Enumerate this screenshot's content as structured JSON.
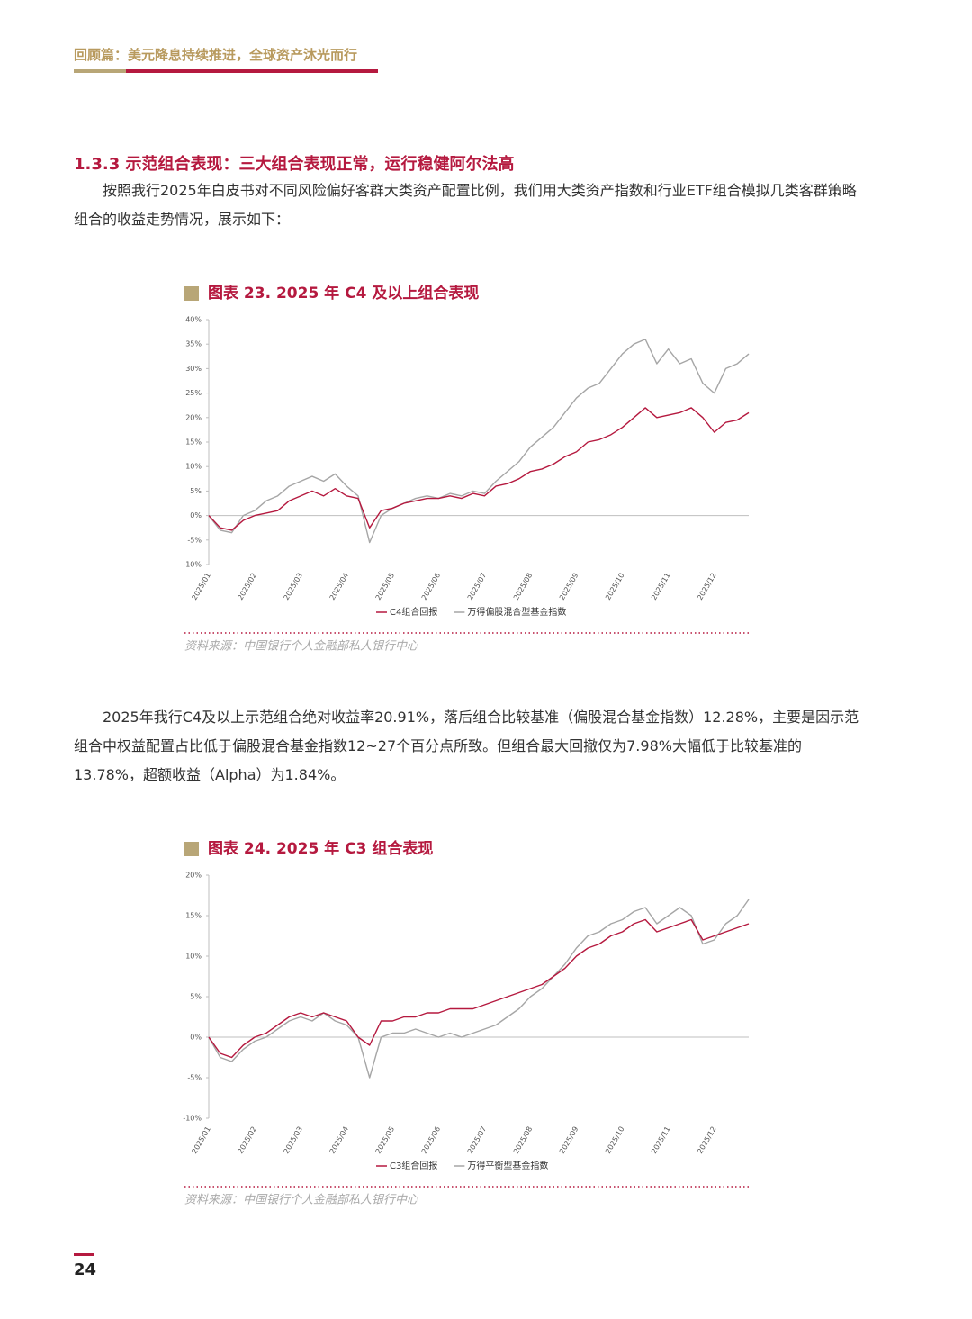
{
  "header": {
    "title": "回顾篇：美元降息持续推进，全球资产沐光而行"
  },
  "section": {
    "heading": "1.3.3 示范组合表现：三大组合表现正常，运行稳健阿尔法高"
  },
  "paragraphs": [
    "按照我行2025年白皮书对不同风险偏好客群大类资产配置比例，我们用大类资产指数和行业ETF组合模拟几类客群策略组合的收益走势情况，展示如下：",
    "2025年我行C4及以上示范组合绝对收益率20.91%，落后组合比较基准（偏股混合基金指数）12.28%，主要是因示范组合中权益配置占比低于偏股混合基金指数12~27个百分点所致。但组合最大回撤仅为7.98%大幅低于比较基准的13.78%，超额收益（Alpha）为1.84%。"
  ],
  "page_number": "24",
  "chart_data": [
    {
      "type": "line",
      "title": "图表 23. 2025 年 C4 及以上组合表现",
      "source": "资料来源：中国银行个人金融部私人银行中心",
      "categories": [
        "2025/01",
        null,
        null,
        null,
        "2025/02",
        null,
        null,
        null,
        "2025/03",
        null,
        null,
        null,
        "2025/04",
        null,
        null,
        null,
        "2025/05",
        null,
        null,
        null,
        "2025/06",
        null,
        null,
        null,
        "2025/07",
        null,
        null,
        null,
        "2025/08",
        null,
        null,
        null,
        "2025/09",
        null,
        null,
        null,
        "2025/10",
        null,
        null,
        null,
        "2025/11",
        null,
        null,
        null,
        "2025/12",
        null,
        null,
        null
      ],
      "series": [
        {
          "name": "C4组合回报",
          "color": "#b5193f",
          "values": [
            0,
            -2.5,
            -3,
            -1,
            0,
            0.5,
            1,
            3,
            4,
            5,
            4,
            5.5,
            4,
            3.5,
            -2.5,
            1,
            1.5,
            2.5,
            3,
            3.5,
            3.5,
            4,
            3.5,
            4.5,
            4,
            6,
            6.5,
            7.5,
            9,
            9.5,
            10.5,
            12,
            13,
            15,
            15.5,
            16.5,
            18,
            20,
            22,
            20,
            20.5,
            21,
            22,
            20,
            17,
            19,
            19.5,
            21
          ]
        },
        {
          "name": "万得偏股混合型基金指数",
          "color": "#a6a6a6",
          "values": [
            0,
            -3,
            -3.5,
            0,
            1,
            3,
            4,
            6,
            7,
            8,
            7,
            8.5,
            6,
            4,
            -5.5,
            0,
            1.5,
            2.5,
            3.5,
            4,
            3.5,
            4.5,
            4,
            5,
            4.5,
            7,
            9,
            11,
            14,
            16,
            18,
            21,
            24,
            26,
            27,
            30,
            33,
            35,
            36,
            31,
            34,
            31,
            32,
            27,
            25,
            30,
            31,
            33
          ]
        }
      ],
      "ylim": [
        -10,
        40
      ],
      "yticks": [
        {
          "value": -10,
          "label": "-10%"
        },
        {
          "value": -5,
          "label": "-5%"
        },
        {
          "value": 0,
          "label": "0%"
        },
        {
          "value": 5,
          "label": "5%"
        },
        {
          "value": 10,
          "label": "10%"
        },
        {
          "value": 15,
          "label": "15%"
        },
        {
          "value": 20,
          "label": "20%"
        },
        {
          "value": 25,
          "label": "25%"
        },
        {
          "value": 30,
          "label": "30%"
        },
        {
          "value": 35,
          "label": "35%"
        },
        {
          "value": 40,
          "label": "40%"
        }
      ],
      "legend": "bottom"
    },
    {
      "type": "line",
      "title": "图表 24. 2025 年 C3 组合表现",
      "source": "资料来源：中国银行个人金融部私人银行中心",
      "categories": [
        "2025/01",
        null,
        null,
        null,
        "2025/02",
        null,
        null,
        null,
        "2025/03",
        null,
        null,
        null,
        "2025/04",
        null,
        null,
        null,
        "2025/05",
        null,
        null,
        null,
        "2025/06",
        null,
        null,
        null,
        "2025/07",
        null,
        null,
        null,
        "2025/08",
        null,
        null,
        null,
        "2025/09",
        null,
        null,
        null,
        "2025/10",
        null,
        null,
        null,
        "2025/11",
        null,
        null,
        null,
        "2025/12",
        null,
        null,
        null
      ],
      "series": [
        {
          "name": "C3组合回报",
          "color": "#b5193f",
          "values": [
            0,
            -2,
            -2.5,
            -1,
            0,
            0.5,
            1.5,
            2.5,
            3,
            2.5,
            3,
            2.5,
            2,
            0,
            -1,
            2,
            2,
            2.5,
            2.5,
            3,
            3,
            3.5,
            3.5,
            3.5,
            4,
            4.5,
            5,
            5.5,
            6,
            6.5,
            7.5,
            8.5,
            10,
            11,
            11.5,
            12.5,
            13,
            14,
            14.5,
            13,
            13.5,
            14,
            14.5,
            12,
            12.5,
            13,
            13.5,
            14
          ]
        },
        {
          "name": "万得平衡型基金指数",
          "color": "#a6a6a6",
          "values": [
            0,
            -2.5,
            -3,
            -1.5,
            -0.5,
            0,
            1,
            2,
            2.5,
            2,
            3,
            2,
            1.5,
            0,
            -5,
            0,
            0.5,
            0.5,
            1,
            0.5,
            0,
            0.5,
            0,
            0.5,
            1,
            1.5,
            2.5,
            3.5,
            5,
            6,
            7.5,
            9,
            11,
            12.5,
            13,
            14,
            14.5,
            15.5,
            16,
            14,
            15,
            16,
            15,
            11.5,
            12,
            14,
            15,
            17
          ]
        }
      ],
      "ylim": [
        -10,
        20
      ],
      "yticks": [
        {
          "value": -10,
          "label": "-10%"
        },
        {
          "value": -5,
          "label": "-5%"
        },
        {
          "value": 0,
          "label": "0%"
        },
        {
          "value": 5,
          "label": "5%"
        },
        {
          "value": 10,
          "label": "10%"
        },
        {
          "value": 15,
          "label": "15%"
        },
        {
          "value": 20,
          "label": "20%"
        }
      ],
      "legend": "bottom"
    }
  ]
}
